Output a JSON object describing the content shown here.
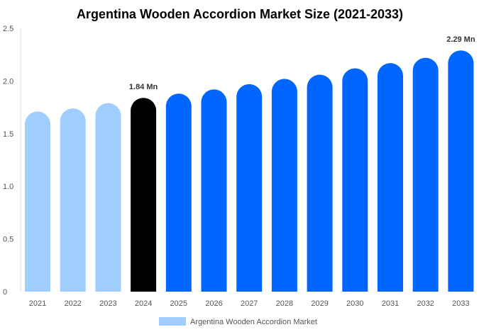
{
  "chart_data": {
    "type": "bar",
    "title": "Argentina Wooden Accordion Market Size (2021-2033)",
    "categories": [
      "2021",
      "2022",
      "2023",
      "2024",
      "2025",
      "2026",
      "2027",
      "2028",
      "2029",
      "2030",
      "2031",
      "2032",
      "2033"
    ],
    "series": [
      {
        "name": "Argentina Wooden Accordion Market",
        "values": [
          1.71,
          1.74,
          1.79,
          1.84,
          1.88,
          1.92,
          1.97,
          2.02,
          2.06,
          2.12,
          2.17,
          2.22,
          2.29
        ]
      }
    ],
    "ylim": [
      0,
      2.5
    ],
    "yticks": [
      "0",
      "0.5",
      "1.0",
      "1.5",
      "2.0",
      "2.5"
    ],
    "data_labels": [
      {
        "category": "2024",
        "text": "1.84 Mn"
      },
      {
        "category": "2033",
        "text": "2.29 Mn"
      }
    ],
    "colors": {
      "historical": "#a0cfff",
      "current": "#000000",
      "forecast": "#0066ff"
    },
    "grid": false,
    "legend": "bottom"
  }
}
